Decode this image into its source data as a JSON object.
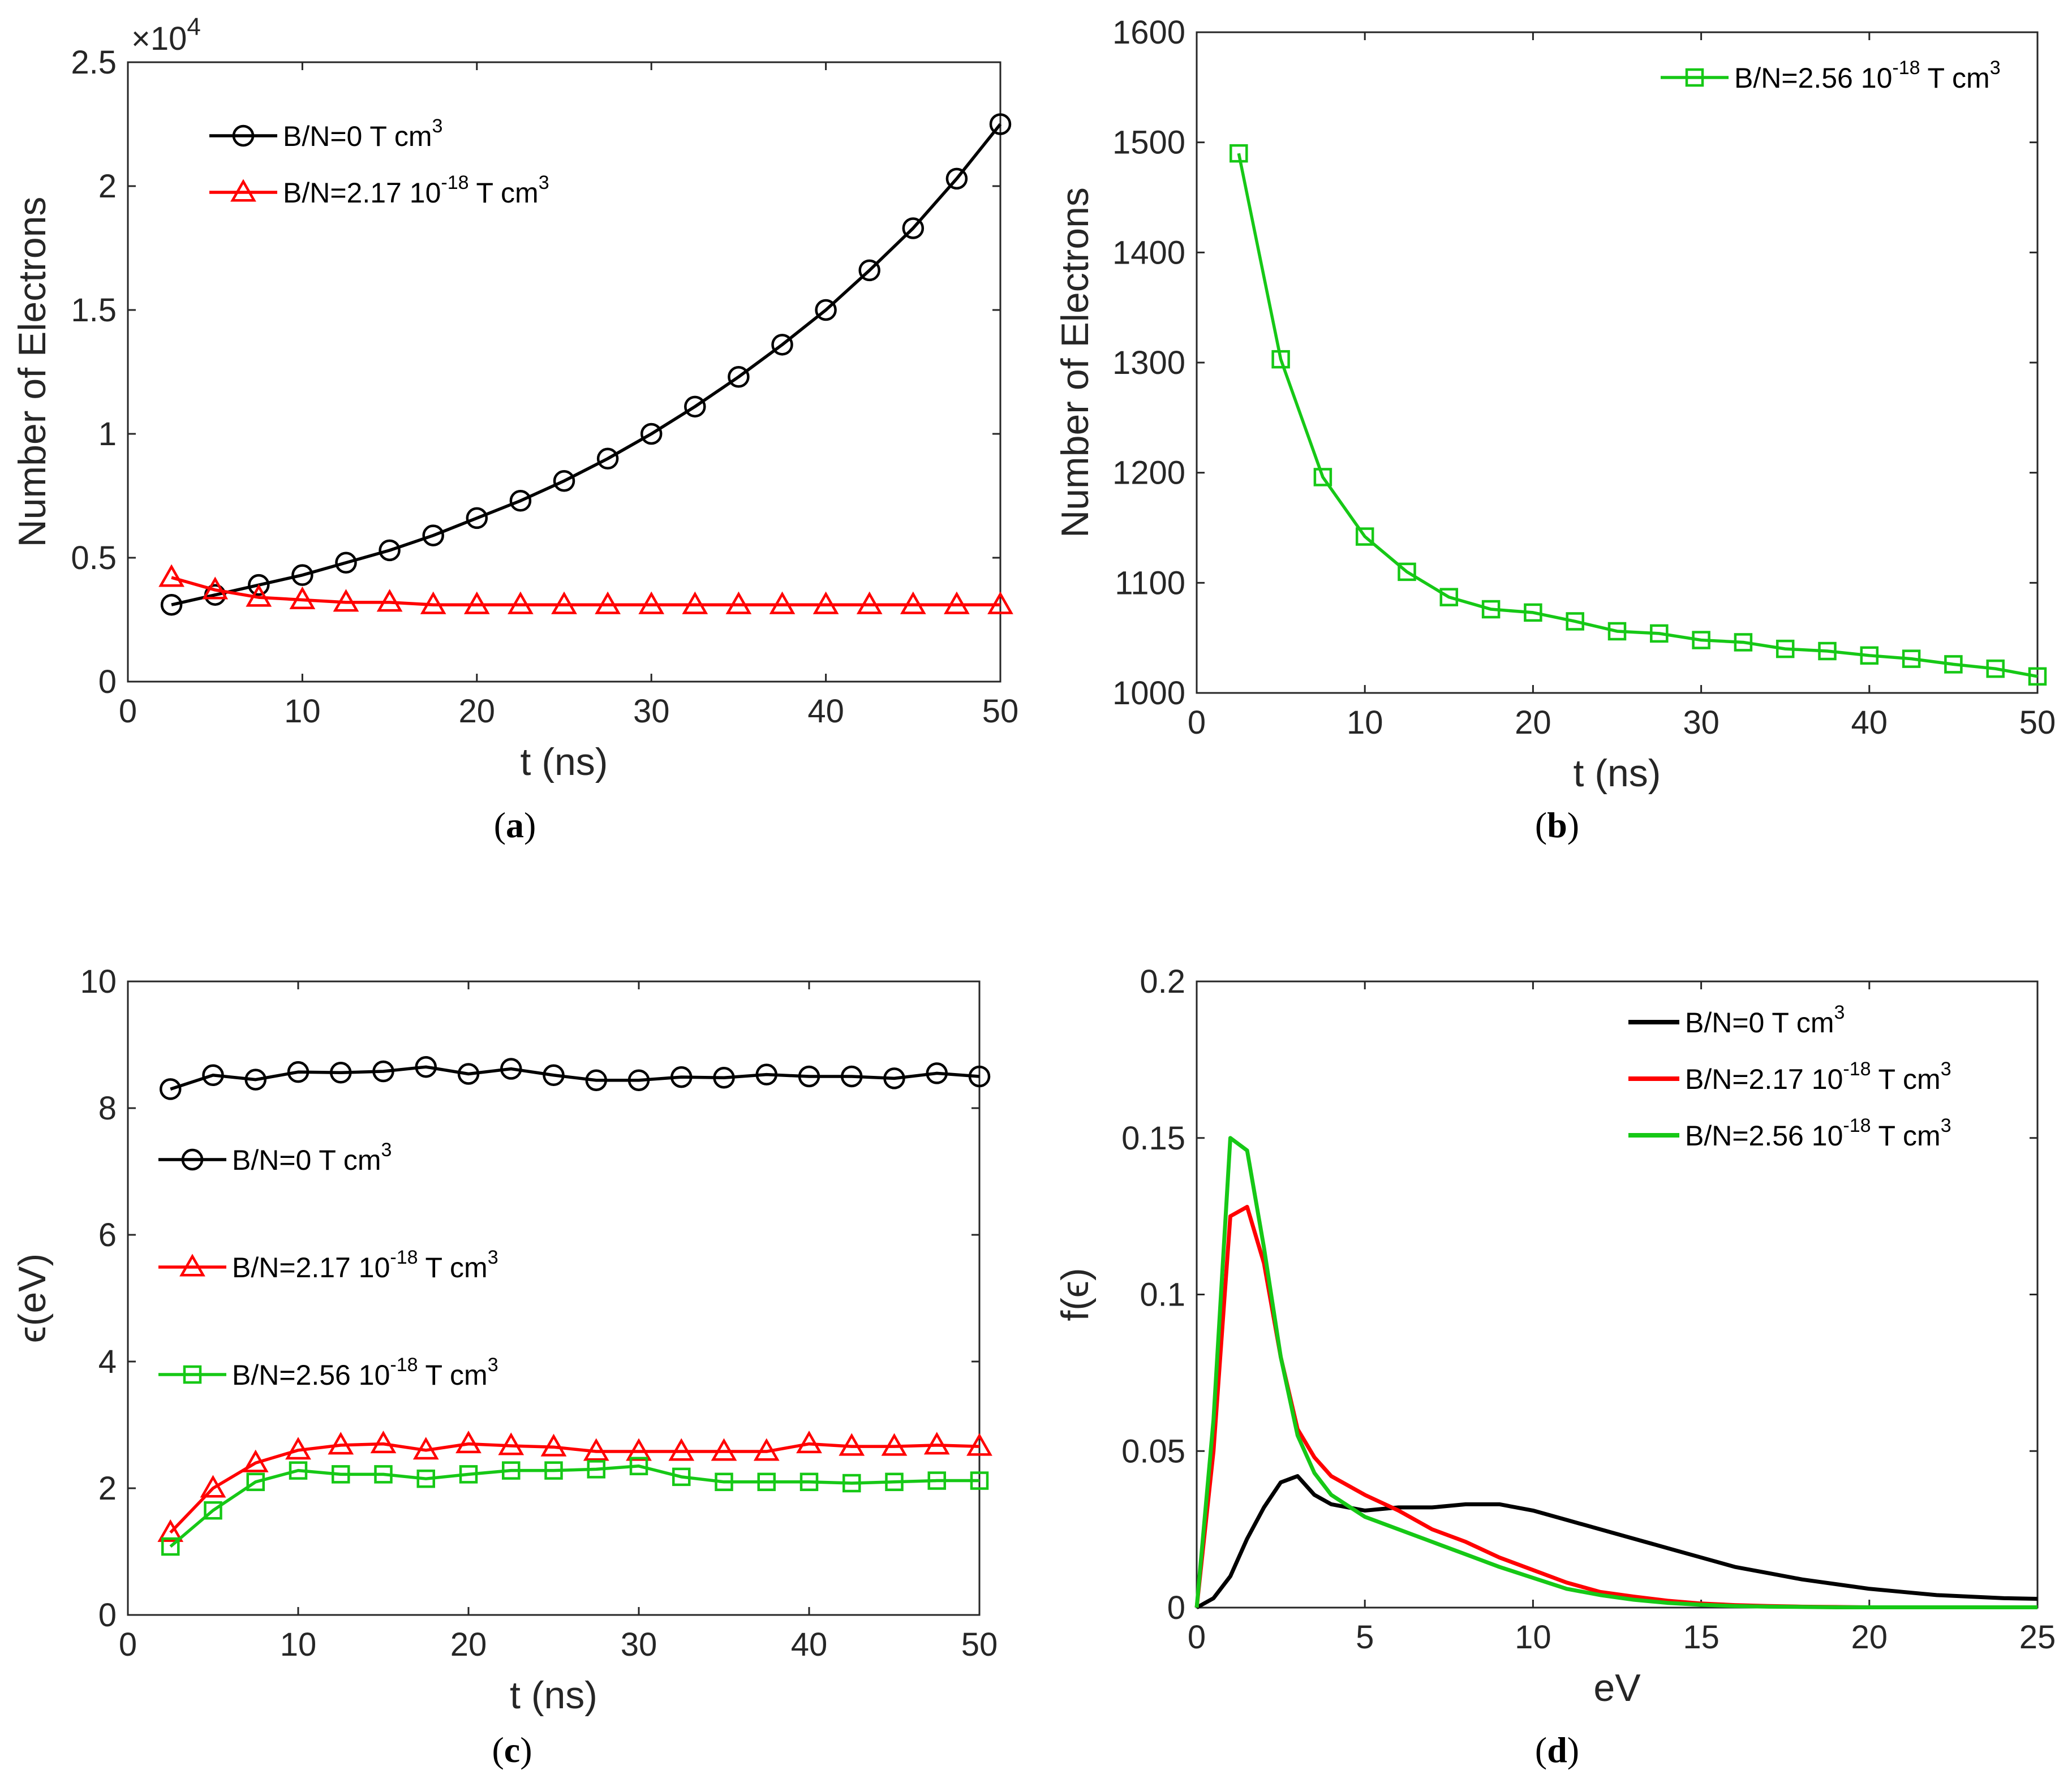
{
  "colors": {
    "black": "#000000",
    "red": "#ff0000",
    "green": "#16c816",
    "axis": "#262626"
  },
  "chart_data": [
    {
      "id": "a",
      "type": "line",
      "caption": "a",
      "xlabel": "t (ns)",
      "ylabel": "Number of Electrons",
      "exponent_label": "×10",
      "exponent_power": "4",
      "xlim": [
        0,
        50
      ],
      "ylim": [
        0,
        2.5
      ],
      "xticks": [
        0,
        10,
        20,
        30,
        40,
        50
      ],
      "xtick_labels": [
        "0",
        "10",
        "20",
        "30",
        "40",
        "50"
      ],
      "yticks": [
        0,
        0.5,
        1,
        1.5,
        2,
        2.5
      ],
      "ytick_labels": [
        "0",
        "0.5",
        "1",
        "1.5",
        "2",
        "2.5"
      ],
      "legend_position": "top-left",
      "series": [
        {
          "name": "B/N=0 T cm",
          "sup": "3",
          "color": "#000000",
          "marker": "circle",
          "x": [
            2.5,
            5,
            7.5,
            10,
            12.5,
            15,
            17.5,
            20,
            22.5,
            25,
            27.5,
            30,
            32.5,
            35,
            37.5,
            40,
            42.5,
            45,
            47.5,
            50
          ],
          "y": [
            0.31,
            0.35,
            0.39,
            0.43,
            0.48,
            0.53,
            0.59,
            0.66,
            0.73,
            0.81,
            0.9,
            1.0,
            1.11,
            1.23,
            1.36,
            1.5,
            1.66,
            1.83,
            2.03,
            2.25
          ]
        },
        {
          "name": "B/N=2.17 10",
          "sup": "-18",
          "name_tail": " T cm",
          "sup2": "3",
          "color": "#ff0000",
          "marker": "triangle",
          "x": [
            2.5,
            5,
            7.5,
            10,
            12.5,
            15,
            17.5,
            20,
            22.5,
            25,
            27.5,
            30,
            32.5,
            35,
            37.5,
            40,
            42.5,
            45,
            47.5,
            50
          ],
          "y": [
            0.42,
            0.37,
            0.34,
            0.33,
            0.32,
            0.32,
            0.31,
            0.31,
            0.31,
            0.31,
            0.31,
            0.31,
            0.31,
            0.31,
            0.31,
            0.31,
            0.31,
            0.31,
            0.31,
            0.31
          ]
        }
      ]
    },
    {
      "id": "b",
      "type": "line",
      "caption": "b",
      "xlabel": "t (ns)",
      "ylabel": "Number of Electrons",
      "xlim": [
        0,
        50
      ],
      "ylim": [
        1000,
        1600
      ],
      "xticks": [
        0,
        10,
        20,
        30,
        40,
        50
      ],
      "xtick_labels": [
        "0",
        "10",
        "20",
        "30",
        "40",
        "50"
      ],
      "yticks": [
        1000,
        1100,
        1200,
        1300,
        1400,
        1500,
        1600
      ],
      "ytick_labels": [
        "1000",
        "1100",
        "1200",
        "1300",
        "1400",
        "1500",
        "1600"
      ],
      "legend_position": "top-right",
      "series": [
        {
          "name": "B/N=2.56 10",
          "sup": "-18",
          "name_tail": " T cm",
          "sup2": "3",
          "color": "#16c816",
          "marker": "square",
          "x": [
            2.5,
            5,
            7.5,
            10,
            12.5,
            15,
            17.5,
            20,
            22.5,
            25,
            27.5,
            30,
            32.5,
            35,
            37.5,
            40,
            42.5,
            45,
            47.5,
            50
          ],
          "y": [
            1490,
            1303,
            1196,
            1142,
            1110,
            1087,
            1076,
            1073,
            1065,
            1056,
            1054,
            1048,
            1046,
            1040,
            1038,
            1034,
            1031,
            1026,
            1022,
            1015
          ]
        }
      ]
    },
    {
      "id": "c",
      "type": "line",
      "caption": "c",
      "xlabel": "t (ns)",
      "ylabel": "ϵ(eV)",
      "xlim": [
        0,
        50
      ],
      "ylim": [
        0,
        10
      ],
      "xticks": [
        0,
        10,
        20,
        30,
        40,
        50
      ],
      "xtick_labels": [
        "0",
        "10",
        "20",
        "30",
        "40",
        "50"
      ],
      "yticks": [
        0,
        2,
        4,
        6,
        8,
        10
      ],
      "ytick_labels": [
        "0",
        "2",
        "4",
        "6",
        "8",
        "10"
      ],
      "legend_position": "middle-left",
      "series": [
        {
          "name": "B/N=0 T cm",
          "sup": "3",
          "color": "#000000",
          "marker": "circle",
          "x": [
            2.5,
            5,
            7.5,
            10,
            12.5,
            15,
            17.5,
            20,
            22.5,
            25,
            27.5,
            30,
            32.5,
            35,
            37.5,
            40,
            42.5,
            45,
            47.5,
            50
          ],
          "y": [
            8.3,
            8.52,
            8.45,
            8.57,
            8.56,
            8.58,
            8.65,
            8.54,
            8.62,
            8.52,
            8.44,
            8.44,
            8.49,
            8.48,
            8.53,
            8.5,
            8.5,
            8.47,
            8.55,
            8.5
          ]
        },
        {
          "name": "B/N=2.17 10",
          "sup": "-18",
          "name_tail": " T cm",
          "sup2": "3",
          "color": "#ff0000",
          "marker": "triangle",
          "x": [
            2.5,
            5,
            7.5,
            10,
            12.5,
            15,
            17.5,
            20,
            22.5,
            25,
            27.5,
            30,
            32.5,
            35,
            37.5,
            40,
            42.5,
            45,
            47.5,
            50
          ],
          "y": [
            1.3,
            2.0,
            2.4,
            2.6,
            2.68,
            2.7,
            2.6,
            2.7,
            2.67,
            2.65,
            2.58,
            2.58,
            2.58,
            2.58,
            2.58,
            2.7,
            2.66,
            2.66,
            2.68,
            2.66
          ]
        },
        {
          "name": "B/N=2.56 10",
          "sup": "-18",
          "name_tail": " T cm",
          "sup2": "3",
          "color": "#16c816",
          "marker": "square",
          "x": [
            2.5,
            5,
            7.5,
            10,
            12.5,
            15,
            17.5,
            20,
            22.5,
            25,
            27.5,
            30,
            32.5,
            35,
            37.5,
            40,
            42.5,
            45,
            47.5,
            50
          ],
          "y": [
            1.08,
            1.65,
            2.1,
            2.28,
            2.22,
            2.22,
            2.15,
            2.22,
            2.28,
            2.28,
            2.3,
            2.35,
            2.18,
            2.1,
            2.1,
            2.1,
            2.08,
            2.1,
            2.12,
            2.12
          ]
        }
      ]
    },
    {
      "id": "d",
      "type": "line",
      "caption": "d",
      "xlabel": "eV",
      "ylabel": "f(ϵ)",
      "xlim": [
        0,
        25
      ],
      "ylim": [
        0,
        0.2
      ],
      "xticks": [
        0,
        5,
        10,
        15,
        20,
        25
      ],
      "xtick_labels": [
        "0",
        "5",
        "10",
        "15",
        "20",
        "25"
      ],
      "yticks": [
        0,
        0.05,
        0.1,
        0.15,
        0.2
      ],
      "ytick_labels": [
        "0",
        "0.05",
        "0.1",
        "0.15",
        "0.2"
      ],
      "legend_position": "top-right",
      "series": [
        {
          "name": "B/N=0 T cm",
          "sup": "3",
          "color": "#000000",
          "marker": "none",
          "x": [
            0,
            0.5,
            1,
            1.5,
            2,
            2.5,
            3,
            3.5,
            4,
            5,
            6,
            7,
            8,
            9,
            10,
            11,
            12,
            13,
            14,
            15,
            16,
            17,
            18,
            19,
            20,
            21,
            22,
            23,
            24,
            25
          ],
          "y": [
            0,
            0.003,
            0.01,
            0.022,
            0.032,
            0.04,
            0.042,
            0.036,
            0.033,
            0.031,
            0.032,
            0.032,
            0.033,
            0.033,
            0.031,
            0.028,
            0.025,
            0.022,
            0.019,
            0.016,
            0.013,
            0.011,
            0.009,
            0.0075,
            0.006,
            0.005,
            0.004,
            0.0035,
            0.003,
            0.0028
          ]
        },
        {
          "name": "B/N=2.17 10",
          "sup": "-18",
          "name_tail": " T cm",
          "sup2": "3",
          "color": "#ff0000",
          "marker": "none",
          "x": [
            0,
            0.5,
            1,
            1.5,
            2,
            2.5,
            3,
            3.5,
            4,
            5,
            6,
            7,
            8,
            9,
            10,
            11,
            12,
            13,
            14,
            15,
            16,
            17,
            18,
            19,
            20,
            21,
            22,
            23,
            24,
            25
          ],
          "y": [
            0,
            0.05,
            0.125,
            0.128,
            0.11,
            0.08,
            0.057,
            0.048,
            0.042,
            0.036,
            0.031,
            0.025,
            0.021,
            0.016,
            0.012,
            0.008,
            0.005,
            0.0035,
            0.0022,
            0.0013,
            0.0008,
            0.0005,
            0.0003,
            0.0002,
            0.0001,
            0.0001,
            0.0001,
            0.0001,
            0.0001,
            0.0001
          ]
        },
        {
          "name": "B/N=2.56 10",
          "sup": "-18",
          "name_tail": " T cm",
          "sup2": "3",
          "color": "#16c816",
          "marker": "none",
          "x": [
            0,
            0.5,
            1,
            1.5,
            2,
            2.5,
            3,
            3.5,
            4,
            5,
            6,
            7,
            8,
            9,
            10,
            11,
            12,
            13,
            14,
            15,
            16,
            17,
            18,
            19,
            20,
            21,
            22,
            23,
            24,
            25
          ],
          "y": [
            0,
            0.06,
            0.15,
            0.146,
            0.115,
            0.08,
            0.055,
            0.043,
            0.036,
            0.029,
            0.025,
            0.021,
            0.017,
            0.013,
            0.0095,
            0.006,
            0.004,
            0.0025,
            0.0015,
            0.0009,
            0.0005,
            0.0003,
            0.0002,
            0.0001,
            0.0001,
            0.0001,
            0.0001,
            0.0001,
            0.0001,
            0.0001
          ]
        }
      ]
    }
  ]
}
